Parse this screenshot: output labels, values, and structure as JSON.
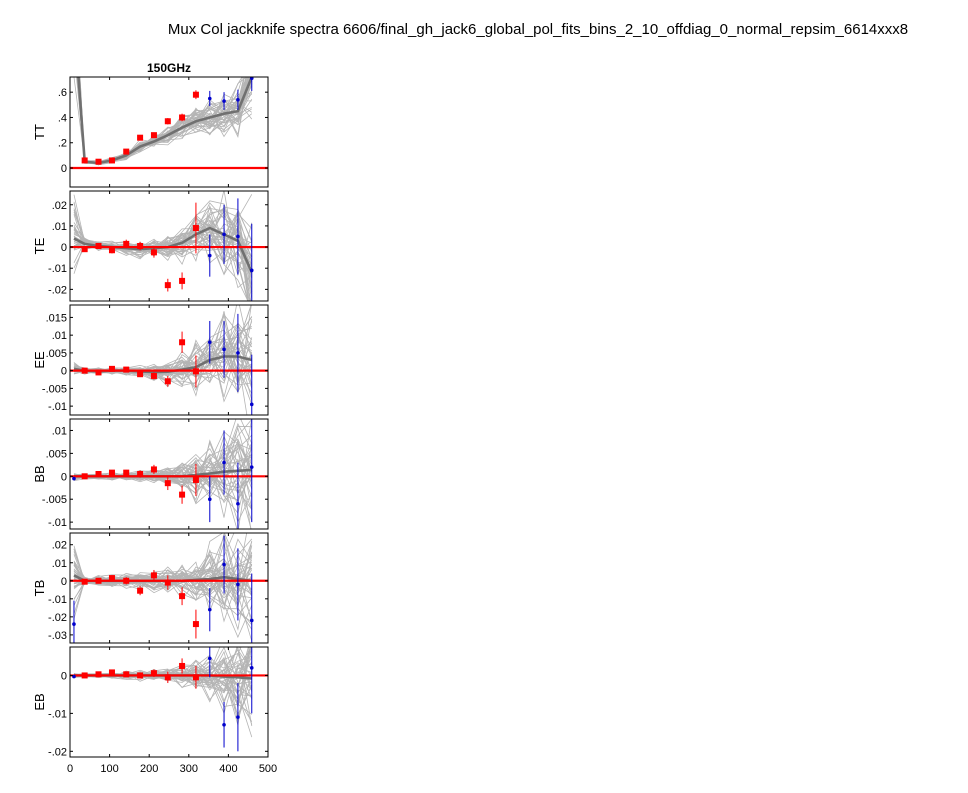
{
  "figure": {
    "title": "Mux Col jackknife spectra 6606/final_gh_jack6_global_pol_fits_bins_2_10_offdiag_0_normal_repsim_6614xxx8",
    "column_title": "150GHz"
  },
  "colors": {
    "sims": "#b4b4b4",
    "sim_mean": "#707070",
    "real": "#ff0000",
    "real_outside_fit": "#0000cc",
    "zero_line": "#ff0000"
  },
  "chart_data": [
    {
      "type": "scatter",
      "ylabel": "TT",
      "xlim": [
        0,
        500
      ],
      "ylim": [
        -0.15,
        0.72
      ],
      "yticks": [
        0,
        0.2,
        0.4,
        0.6
      ],
      "x": [
        10,
        37,
        72,
        106,
        142,
        177,
        212,
        247,
        283,
        318,
        353,
        389,
        424,
        459
      ],
      "real": [
        null,
        0.06,
        0.05,
        0.06,
        0.13,
        0.24,
        0.26,
        0.37,
        0.4,
        0.58,
        0.55,
        0.53,
        0.54,
        0.71
      ],
      "real_err": [
        0,
        0.01,
        0.01,
        0.01,
        0.015,
        0.02,
        0.02,
        0.025,
        0.03,
        0.035,
        0.06,
        0.07,
        0.08,
        0.1
      ],
      "in_fit": [
        false,
        true,
        true,
        true,
        true,
        true,
        true,
        true,
        true,
        true,
        false,
        false,
        false,
        false
      ],
      "sim_mean": [
        1.2,
        0.05,
        0.04,
        0.06,
        0.1,
        0.17,
        0.21,
        0.26,
        0.32,
        0.37,
        0.4,
        0.43,
        0.45,
        0.72
      ],
      "sim_spread": [
        0.3,
        0.01,
        0.01,
        0.015,
        0.02,
        0.03,
        0.035,
        0.045,
        0.06,
        0.07,
        0.1,
        0.12,
        0.14,
        0.2
      ]
    },
    {
      "type": "scatter",
      "ylabel": "TE",
      "xlim": [
        0,
        500
      ],
      "ylim": [
        -0.0255,
        0.0265
      ],
      "yticks": [
        -0.02,
        -0.01,
        0,
        0.01,
        0.02
      ],
      "x": [
        10,
        37,
        72,
        106,
        142,
        177,
        212,
        247,
        283,
        318,
        353,
        389,
        424,
        459
      ],
      "real": [
        null,
        -0.001,
        0.0005,
        -0.0015,
        0.0015,
        0.0005,
        -0.0025,
        -0.018,
        -0.016,
        0.009,
        -0.004,
        0.006,
        0.005,
        -0.011
      ],
      "real_err": [
        0,
        0.001,
        0.001,
        0.0015,
        0.002,
        0.002,
        0.0025,
        0.003,
        0.004,
        0.012,
        0.01,
        0.014,
        0.018,
        0.022
      ],
      "in_fit": [
        false,
        true,
        true,
        true,
        true,
        true,
        true,
        true,
        true,
        true,
        false,
        false,
        false,
        false
      ],
      "sim_mean": [
        0.004,
        0.0015,
        0.0005,
        0.0,
        -0.0005,
        -0.001,
        -0.0005,
        0.0,
        0.002,
        0.006,
        0.009,
        0.006,
        0.003,
        -0.012
      ],
      "sim_spread": [
        0.012,
        0.002,
        0.0015,
        0.0015,
        0.002,
        0.0025,
        0.003,
        0.004,
        0.005,
        0.007,
        0.01,
        0.013,
        0.016,
        0.02
      ]
    },
    {
      "type": "scatter",
      "ylabel": "EE",
      "xlim": [
        0,
        500
      ],
      "ylim": [
        -0.0125,
        0.0185
      ],
      "yticks": [
        -0.01,
        -0.005,
        0,
        0.005,
        0.01,
        0.015
      ],
      "x": [
        10,
        37,
        72,
        106,
        142,
        177,
        212,
        247,
        283,
        318,
        353,
        389,
        424,
        459
      ],
      "real": [
        null,
        0.0,
        -0.0005,
        0.0005,
        0.0003,
        -0.001,
        -0.0015,
        -0.003,
        0.008,
        -0.0002,
        0.008,
        0.006,
        0.005,
        -0.0095
      ],
      "real_err": [
        0,
        0.0003,
        0.0004,
        0.0005,
        0.0006,
        0.0008,
        0.001,
        0.0015,
        0.003,
        0.0045,
        0.006,
        0.008,
        0.011,
        0.014
      ],
      "in_fit": [
        false,
        true,
        true,
        true,
        true,
        true,
        true,
        true,
        true,
        true,
        false,
        false,
        false,
        false
      ],
      "sim_mean": [
        0.0005,
        0.0,
        -0.0002,
        0.0,
        0.0,
        -0.0002,
        -0.0004,
        -0.0003,
        0.0003,
        0.001,
        0.003,
        0.004,
        0.004,
        0.003
      ],
      "sim_spread": [
        0.001,
        0.0005,
        0.0005,
        0.0006,
        0.0008,
        0.001,
        0.0014,
        0.002,
        0.003,
        0.0045,
        0.006,
        0.008,
        0.01,
        0.013
      ]
    },
    {
      "type": "scatter",
      "ylabel": "BB",
      "xlim": [
        0,
        500
      ],
      "ylim": [
        -0.0115,
        0.0125
      ],
      "yticks": [
        -0.01,
        -0.005,
        0,
        0.005,
        0.01
      ],
      "x": [
        10,
        37,
        72,
        106,
        142,
        177,
        212,
        247,
        283,
        318,
        353,
        389,
        424,
        459
      ],
      "real": [
        -0.0005,
        0.0,
        0.0005,
        0.0008,
        0.0008,
        0.0005,
        0.0015,
        -0.0015,
        -0.004,
        -0.0008,
        -0.005,
        0.003,
        -0.006,
        0.002
      ],
      "real_err": [
        0.0003,
        0.0003,
        0.0004,
        0.0005,
        0.0006,
        0.0008,
        0.001,
        0.0015,
        0.002,
        0.0035,
        0.005,
        0.007,
        0.009,
        0.012
      ],
      "in_fit": [
        false,
        true,
        true,
        true,
        true,
        true,
        true,
        true,
        true,
        true,
        false,
        false,
        false,
        false
      ],
      "sim_mean": [
        0.0,
        0.0,
        0.0,
        0.0,
        0.0,
        0.0,
        0.0,
        0.0,
        0.0,
        0.0003,
        0.0006,
        0.001,
        0.0012,
        0.0014
      ],
      "sim_spread": [
        0.0005,
        0.0004,
        0.0004,
        0.0005,
        0.0006,
        0.0008,
        0.001,
        0.0013,
        0.002,
        0.003,
        0.0045,
        0.006,
        0.008,
        0.011
      ]
    },
    {
      "type": "scatter",
      "ylabel": "TB",
      "xlim": [
        0,
        500
      ],
      "ylim": [
        -0.0345,
        0.0265
      ],
      "yticks": [
        -0.03,
        -0.02,
        -0.01,
        0,
        0.01,
        0.02
      ],
      "x": [
        10,
        37,
        72,
        106,
        142,
        177,
        212,
        247,
        283,
        318,
        353,
        389,
        424,
        459
      ],
      "real": [
        -0.024,
        -0.0005,
        0.0,
        0.0015,
        0.0,
        -0.0055,
        0.003,
        -0.001,
        -0.0085,
        -0.024,
        -0.016,
        0.009,
        -0.002,
        -0.022
      ],
      "real_err": [
        0.013,
        0.001,
        0.0012,
        0.0015,
        0.002,
        0.0025,
        0.003,
        0.004,
        0.005,
        0.008,
        0.012,
        0.016,
        0.02,
        0.026
      ],
      "in_fit": [
        false,
        true,
        true,
        true,
        true,
        true,
        true,
        true,
        true,
        true,
        false,
        false,
        false,
        false
      ],
      "sim_mean": [
        0.003,
        0.0,
        0.0,
        0.0,
        0.0,
        0.0,
        0.0,
        0.0,
        0.0,
        0.0005,
        0.001,
        0.002,
        0.001,
        0.0
      ],
      "sim_spread": [
        0.013,
        0.0015,
        0.0015,
        0.002,
        0.0025,
        0.003,
        0.004,
        0.005,
        0.006,
        0.008,
        0.012,
        0.015,
        0.018,
        0.022
      ]
    },
    {
      "type": "scatter",
      "ylabel": "EB",
      "xlim": [
        0,
        500
      ],
      "ylim": [
        -0.0215,
        0.0075
      ],
      "yticks": [
        -0.02,
        -0.01,
        0
      ],
      "xticks": [
        0,
        100,
        200,
        300,
        400,
        500
      ],
      "x": [
        10,
        37,
        72,
        106,
        142,
        177,
        212,
        247,
        283,
        318,
        353,
        389,
        424,
        459
      ],
      "real": [
        -0.0003,
        0.0,
        0.0003,
        0.0008,
        0.0003,
        0.0,
        0.0006,
        -0.0005,
        0.0025,
        -0.0005,
        0.0045,
        -0.013,
        -0.011,
        0.002
      ],
      "real_err": [
        0.0003,
        0.0003,
        0.0004,
        0.0005,
        0.0006,
        0.0008,
        0.001,
        0.0015,
        0.002,
        0.003,
        0.005,
        0.006,
        0.009,
        0.012
      ],
      "in_fit": [
        false,
        true,
        true,
        true,
        true,
        true,
        true,
        true,
        true,
        true,
        false,
        false,
        false,
        false
      ],
      "sim_mean": [
        0.0,
        0.0,
        0.0,
        0.0,
        0.0,
        0.0,
        0.0,
        0.0,
        0.0,
        0.0,
        0.0,
        -0.0003,
        -0.0005,
        -0.0008
      ],
      "sim_spread": [
        0.0004,
        0.0003,
        0.0004,
        0.0005,
        0.0006,
        0.0008,
        0.001,
        0.0013,
        0.0018,
        0.0025,
        0.004,
        0.006,
        0.008,
        0.011
      ]
    }
  ]
}
